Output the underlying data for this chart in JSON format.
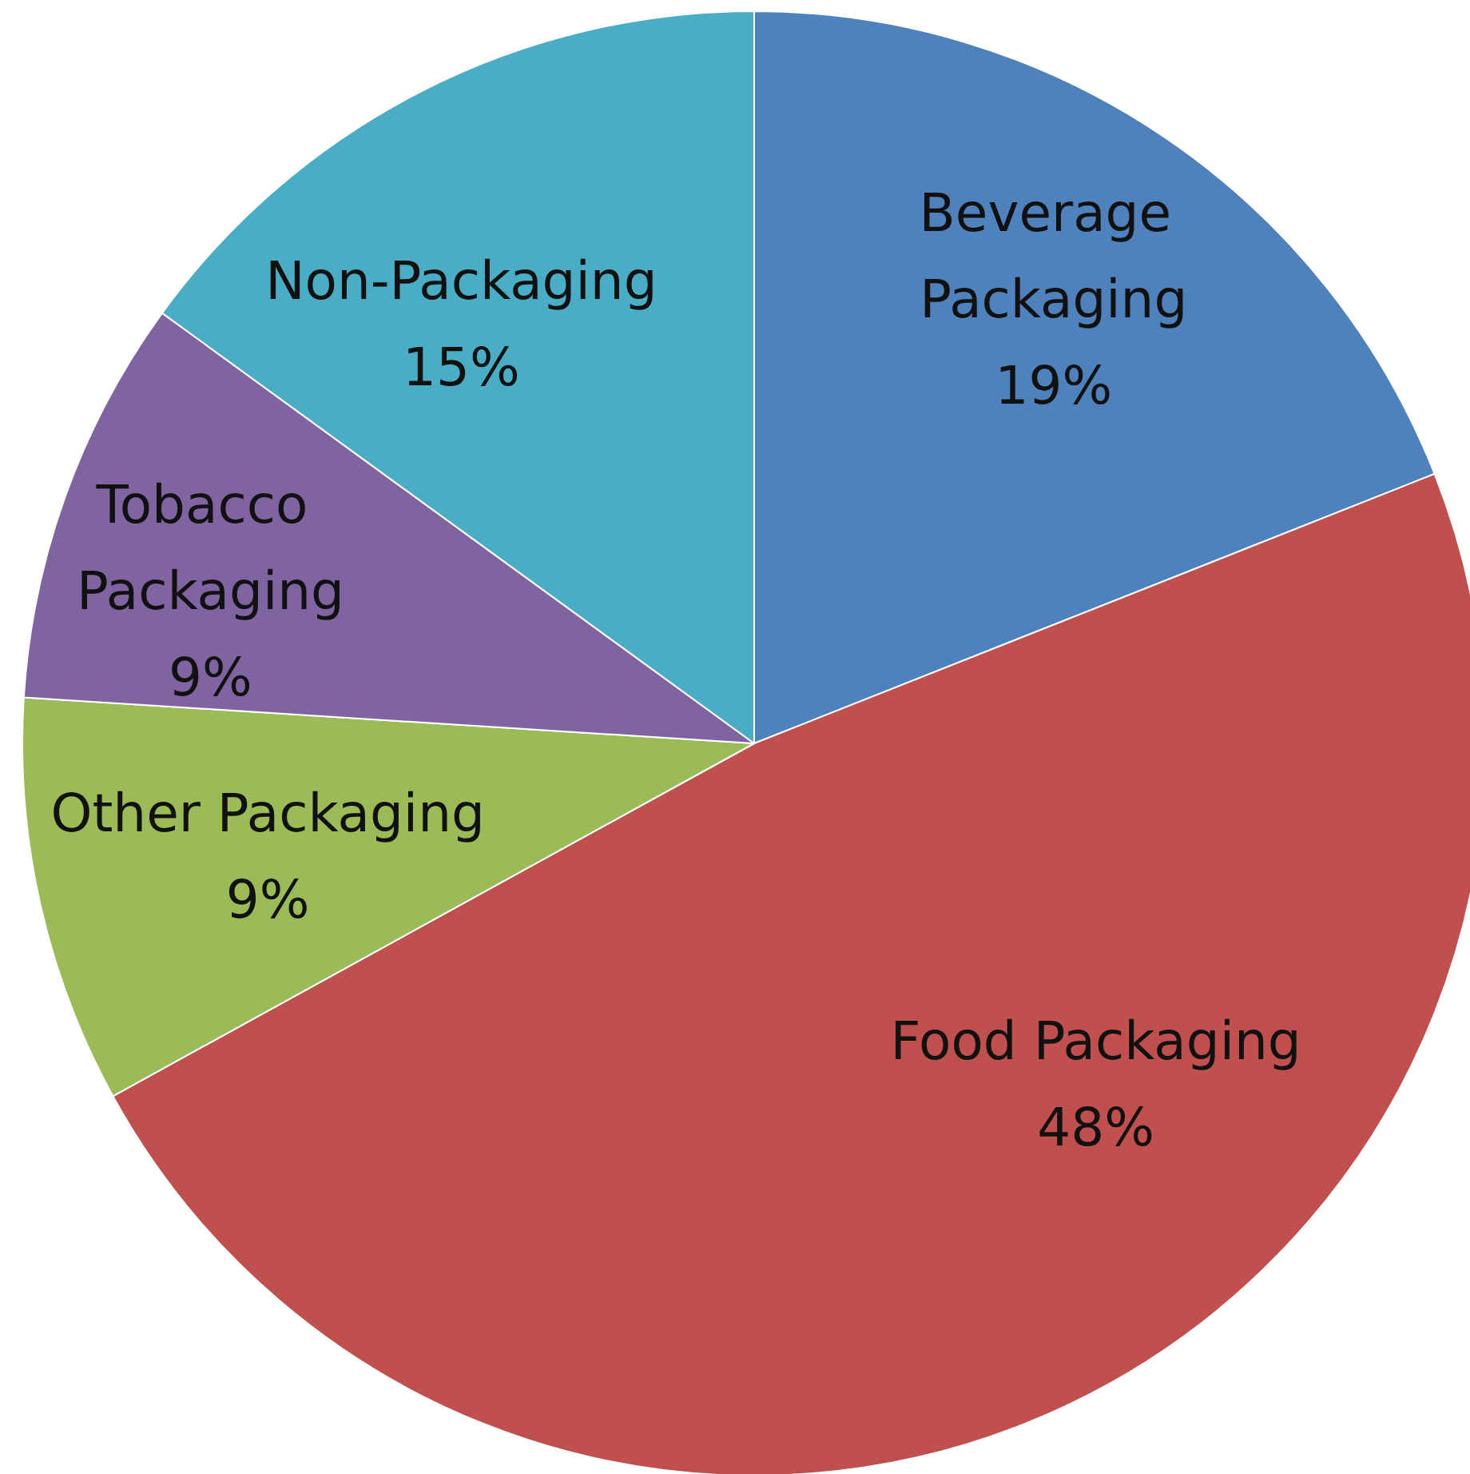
{
  "chart_data": {
    "type": "pie",
    "categories": [
      "Beverage Packaging",
      "Food Packaging",
      "Other Packaging",
      "Tobacco Packaging",
      "Non-Packaging"
    ],
    "values": [
      19,
      48,
      9,
      9,
      15
    ],
    "value_labels": [
      "19%",
      "48%",
      "9%",
      "9%",
      "15%"
    ],
    "colors": [
      "#4f81bd",
      "#c0504d",
      "#9bbb59",
      "#8064a2",
      "#4bacc6"
    ],
    "legend": false
  }
}
